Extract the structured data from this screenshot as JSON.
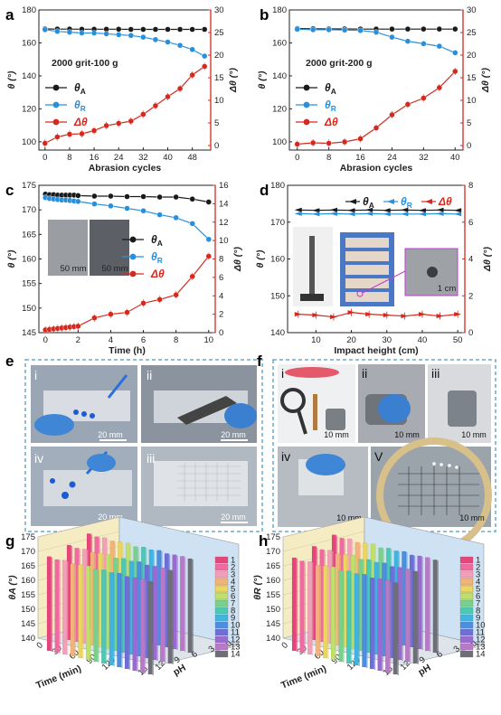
{
  "panel_letters": [
    "a",
    "b",
    "c",
    "d",
    "e",
    "f",
    "g",
    "h"
  ],
  "colors": {
    "black": "#1a1a1a",
    "blue": "#2a8fdb",
    "red": "#d42a1e",
    "photo_frame": "#6aa9c9"
  },
  "chart_data": [
    {
      "panel": "a",
      "type": "line",
      "condition": "2000 grit-100 g",
      "xlabel": "Abrasion cycles",
      "ylabel": "θ (°)",
      "y2label": "Δθ (°)",
      "xlim": [
        -2,
        54
      ],
      "xticks": [
        0,
        8,
        16,
        24,
        32,
        40,
        48
      ],
      "ylim": [
        95,
        180
      ],
      "yticks": [
        100,
        120,
        140,
        160,
        180
      ],
      "y2lim": [
        -1,
        30
      ],
      "y2ticks": [
        0,
        5,
        10,
        15,
        20,
        25,
        30
      ],
      "legend": [
        "θA",
        "θR",
        "Δθ"
      ],
      "series": [
        {
          "name": "θA",
          "axis": "left",
          "x": [
            0,
            4,
            8,
            12,
            16,
            20,
            24,
            28,
            32,
            36,
            40,
            44,
            48,
            52
          ],
          "y": [
            168.5,
            168.4,
            168.4,
            168.3,
            168.3,
            168.3,
            168.3,
            168.2,
            168.2,
            168.2,
            168.2,
            168.2,
            168.2,
            168.2
          ]
        },
        {
          "name": "θR",
          "axis": "left",
          "x": [
            0,
            4,
            8,
            12,
            16,
            20,
            24,
            28,
            32,
            36,
            40,
            44,
            48,
            52
          ],
          "y": [
            168,
            167,
            166.5,
            166,
            166,
            165.5,
            165,
            164.5,
            163.5,
            162,
            160.5,
            158.5,
            156,
            152
          ]
        },
        {
          "name": "Δθ",
          "axis": "right",
          "x": [
            0,
            4,
            8,
            12,
            16,
            20,
            24,
            28,
            32,
            36,
            40,
            44,
            48,
            52
          ],
          "y": [
            0.5,
            1.9,
            2.5,
            2.6,
            3.3,
            4.4,
            4.9,
            5.4,
            6.9,
            8.8,
            10.8,
            12.6,
            15.6,
            17.5
          ]
        }
      ]
    },
    {
      "panel": "b",
      "type": "line",
      "condition": "2000 grit-200 g",
      "xlabel": "Abrasion cycles",
      "ylabel": "θ (°)",
      "y2label": "Δθ (°)",
      "xlim": [
        -2,
        42
      ],
      "xticks": [
        0,
        8,
        16,
        24,
        32,
        40
      ],
      "ylim": [
        95,
        180
      ],
      "yticks": [
        100,
        120,
        140,
        160,
        180
      ],
      "y2lim": [
        -1,
        30
      ],
      "y2ticks": [
        0,
        5,
        10,
        15,
        20,
        25,
        30
      ],
      "legend": [
        "θA",
        "θR",
        "Δθ"
      ],
      "series": [
        {
          "name": "θA",
          "axis": "left",
          "x": [
            0,
            4,
            8,
            12,
            16,
            20,
            24,
            28,
            32,
            36,
            40
          ],
          "y": [
            168.7,
            168.6,
            168.5,
            168.5,
            168.4,
            168.4,
            168.4,
            168.4,
            168.4,
            168.4,
            168.4
          ]
        },
        {
          "name": "θR",
          "axis": "left",
          "x": [
            0,
            4,
            8,
            12,
            16,
            20,
            24,
            28,
            32,
            36,
            40
          ],
          "y": [
            168.3,
            168,
            168,
            167.8,
            167.5,
            166.5,
            163.5,
            161,
            159.5,
            158,
            154
          ]
        },
        {
          "name": "Δθ",
          "axis": "right",
          "x": [
            0,
            4,
            8,
            12,
            16,
            20,
            24,
            28,
            32,
            36,
            40
          ],
          "y": [
            0.3,
            0.6,
            0.5,
            0.8,
            1.5,
            3.9,
            6.8,
            9.1,
            10.5,
            12.8,
            16.4
          ]
        }
      ]
    },
    {
      "panel": "c",
      "type": "line",
      "xlabel": "Time (h)",
      "ylabel": "θ (°)",
      "y2label": "Δθ (°)",
      "xlim": [
        -0.4,
        10.4
      ],
      "xticks": [
        0,
        2,
        4,
        6,
        8,
        10
      ],
      "ylim": [
        145,
        175
      ],
      "yticks": [
        145,
        150,
        155,
        160,
        165,
        170,
        175
      ],
      "y2lim": [
        0,
        16
      ],
      "y2ticks": [
        0,
        2,
        4,
        6,
        8,
        10,
        12,
        14,
        16
      ],
      "legend": [
        "θA",
        "θR",
        "Δθ"
      ],
      "series": [
        {
          "name": "θA",
          "axis": "left",
          "x": [
            0,
            0.25,
            0.5,
            0.75,
            1,
            1.25,
            1.5,
            1.75,
            2,
            3,
            4,
            5,
            6,
            7,
            8,
            9,
            10
          ],
          "y": [
            173.2,
            173.1,
            173.1,
            173,
            173,
            173,
            173,
            173,
            172.9,
            172.8,
            172.8,
            172.7,
            172.7,
            172.6,
            172.6,
            172.2,
            171.6
          ]
        },
        {
          "name": "θR",
          "axis": "left",
          "x": [
            0,
            0.25,
            0.5,
            0.75,
            1,
            1.25,
            1.5,
            1.75,
            2,
            3,
            4,
            5,
            6,
            7,
            8,
            9,
            10
          ],
          "y": [
            172.5,
            172.3,
            172.2,
            172.1,
            172,
            172,
            171.9,
            171.8,
            171.7,
            171.2,
            170.8,
            170.3,
            169.8,
            169,
            168.4,
            167.2,
            164
          ]
        },
        {
          "name": "Δθ",
          "axis": "right",
          "x": [
            0,
            0.25,
            0.5,
            0.75,
            1,
            1.25,
            1.5,
            1.75,
            2,
            3,
            4,
            5,
            6,
            7,
            8,
            9,
            10
          ],
          "y": [
            0.3,
            0.35,
            0.4,
            0.45,
            0.5,
            0.55,
            0.6,
            0.65,
            0.7,
            1.6,
            2,
            2.2,
            3.2,
            3.6,
            4.1,
            6.1,
            8.3
          ]
        }
      ]
    },
    {
      "panel": "d",
      "type": "line",
      "xlabel": "Impact height (cm)",
      "ylabel": "θ (°)",
      "y2label": "Δθ (°)",
      "xlim": [
        2,
        52
      ],
      "xticks": [
        10,
        20,
        30,
        40,
        50
      ],
      "ylim": [
        140,
        180
      ],
      "yticks": [
        140,
        150,
        160,
        170,
        180
      ],
      "y2lim": [
        0,
        8
      ],
      "y2ticks": [
        0,
        2,
        4,
        6,
        8
      ],
      "legend": [
        "θA",
        "θR",
        "Δθ"
      ],
      "series": [
        {
          "name": "θA",
          "axis": "left",
          "x": [
            5,
            10,
            15,
            20,
            25,
            30,
            35,
            40,
            45,
            50
          ],
          "y": [
            173.3,
            173.2,
            173.3,
            173.2,
            173.3,
            173.2,
            173.3,
            173.2,
            173.3,
            173.2
          ]
        },
        {
          "name": "θR",
          "axis": "left",
          "x": [
            5,
            10,
            15,
            20,
            25,
            30,
            35,
            40,
            45,
            50
          ],
          "y": [
            172.3,
            172.2,
            172.3,
            172.2,
            172.3,
            172.2,
            172.2,
            172.2,
            172.3,
            172.2
          ]
        },
        {
          "name": "Δθ",
          "axis": "right",
          "x": [
            5,
            10,
            15,
            20,
            25,
            30,
            35,
            40,
            45,
            50
          ],
          "y": [
            1,
            0.95,
            0.85,
            1.1,
            1,
            0.95,
            0.9,
            1,
            0.9,
            1
          ]
        }
      ]
    },
    {
      "panel": "g",
      "type": "bar3d",
      "xlabel": "Time (min)",
      "ylabel": "pH",
      "zlabel": "θA (°)",
      "time_ticks": [
        0,
        30,
        60,
        90,
        120
      ],
      "ph_ticks": [
        15,
        12,
        9,
        6,
        3,
        0
      ],
      "zticks": [
        140,
        145,
        150,
        155,
        160,
        165,
        170,
        175
      ],
      "zlim": [
        140,
        175
      ],
      "legend": [
        "1",
        "2",
        "3",
        "4",
        "5",
        "6",
        "7",
        "8",
        "9",
        "10",
        "11",
        "12",
        "13",
        "14"
      ],
      "values": [
        173,
        172.6,
        172.9,
        172.4,
        172.7,
        172.9,
        172.3,
        172.8,
        172.5,
        172.9,
        172.4,
        172.6,
        172.7,
        172.5
      ]
    },
    {
      "panel": "h",
      "type": "bar3d",
      "xlabel": "Time (min)",
      "ylabel": "pH",
      "zlabel": "θR (°)",
      "time_ticks": [
        0,
        30,
        60,
        90,
        120
      ],
      "ph_ticks": [
        15,
        12,
        9,
        6,
        3,
        0
      ],
      "zticks": [
        140,
        145,
        150,
        155,
        160,
        165,
        170,
        175
      ],
      "zlim": [
        140,
        175
      ],
      "legend": [
        "1",
        "2",
        "3",
        "4",
        "5",
        "6",
        "7",
        "8",
        "9",
        "10",
        "11",
        "12",
        "13",
        "14"
      ],
      "values": [
        172.6,
        172.1,
        172.5,
        171.9,
        172.3,
        172.6,
        171.9,
        172.4,
        172.1,
        172.5,
        171.9,
        172.2,
        172.3,
        172.1
      ]
    }
  ],
  "bar_palette": [
    "#e8447c",
    "#f06aa0",
    "#f2a0b8",
    "#f3b27a",
    "#ead660",
    "#bfe06b",
    "#78d18b",
    "#4cc9b4",
    "#3fb4e0",
    "#4a8fe0",
    "#6d6fd8",
    "#9a6ad2",
    "#b87ac8",
    "#6e6e78"
  ],
  "photos": {
    "c": {
      "scale": [
        "50 mm",
        "50 mm"
      ]
    },
    "d": {
      "scale": "1 cm"
    },
    "e": {
      "labels": [
        "i",
        "ii",
        "iv",
        "iii"
      ],
      "scale": [
        "20 mm",
        "20 mm",
        "20 mm",
        "20 mm"
      ]
    },
    "f": {
      "labels": [
        "i",
        "ii",
        "iii",
        "iv",
        "V"
      ],
      "scale": [
        "10 mm",
        "10 mm",
        "10 mm",
        "10 mm",
        "10 mm"
      ]
    }
  }
}
